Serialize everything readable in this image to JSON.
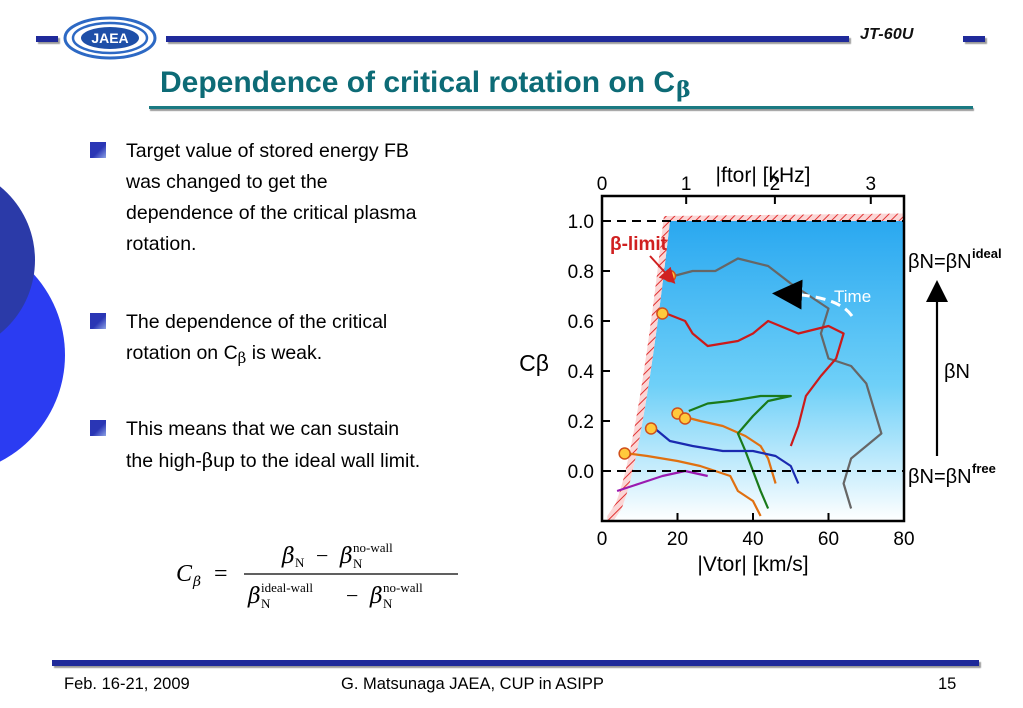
{
  "header": {
    "logo_text": "JAEA",
    "badge": "JT-60U"
  },
  "title": {
    "text": "Dependence of critical rotation on C",
    "subscript": "β"
  },
  "bullets": [
    {
      "lines": [
        "Target value of stored energy FB",
        "was changed to get the",
        "dependence of the critical plasma",
        "rotation."
      ]
    },
    {
      "lines": [
        "The dependence of the critical"
      ],
      "line2_prefix": "rotation on C",
      "line2_sub": "β",
      "line2_suffix": " is weak."
    },
    {
      "lines": [
        "This means that we can sustain"
      ],
      "line2_prefix": "the high-",
      "line2_beta": "β",
      "line2_suffix": "up to the ideal wall limit."
    }
  ],
  "chart_data": {
    "type": "line",
    "xlabel": "|Vtor| [km/s]",
    "x2label": "|ftor| [kHz]",
    "ylabel": "Cβ",
    "xlim": [
      0,
      80
    ],
    "ylim": [
      -0.2,
      1.1
    ],
    "x_ticks": [
      "0",
      "20",
      "40",
      "60",
      "80"
    ],
    "x2_ticks": [
      "0",
      "1",
      "2",
      "3"
    ],
    "y_ticks": [
      "0.0",
      "0.2",
      "0.4",
      "0.6",
      "0.8",
      "1.0"
    ],
    "hlines": [
      1.0,
      0.0
    ],
    "annotations": {
      "limit_label": "β-limit",
      "time_label": "Time",
      "ideal_label": "βN=βN",
      "ideal_sup": "ideal",
      "free_label": "βN=βN",
      "free_sup": "free",
      "arrow_label": "βN"
    },
    "critical_points": [
      {
        "x": 6,
        "y": 0.07
      },
      {
        "x": 13,
        "y": 0.17
      },
      {
        "x": 16,
        "y": 0.63
      },
      {
        "x": 18,
        "y": 0.78
      },
      {
        "x": 20,
        "y": 0.23
      },
      {
        "x": 22,
        "y": 0.21
      }
    ],
    "series": [
      {
        "color": "#666666",
        "points": [
          [
            66,
            -0.15
          ],
          [
            64,
            -0.05
          ],
          [
            66,
            0.05
          ],
          [
            70,
            0.1
          ],
          [
            74,
            0.15
          ],
          [
            72,
            0.25
          ],
          [
            70,
            0.35
          ],
          [
            66,
            0.42
          ],
          [
            60,
            0.45
          ],
          [
            58,
            0.55
          ],
          [
            60,
            0.65
          ],
          [
            55,
            0.7
          ],
          [
            50,
            0.75
          ],
          [
            44,
            0.82
          ],
          [
            36,
            0.85
          ],
          [
            30,
            0.8
          ],
          [
            24,
            0.8
          ],
          [
            19,
            0.78
          ]
        ]
      },
      {
        "color": "#cc1a1a",
        "points": [
          [
            50,
            0.1
          ],
          [
            52,
            0.18
          ],
          [
            54,
            0.3
          ],
          [
            58,
            0.38
          ],
          [
            62,
            0.45
          ],
          [
            64,
            0.55
          ],
          [
            60,
            0.58
          ],
          [
            52,
            0.55
          ],
          [
            44,
            0.6
          ],
          [
            40,
            0.55
          ],
          [
            36,
            0.52
          ],
          [
            28,
            0.5
          ],
          [
            24,
            0.55
          ],
          [
            22,
            0.6
          ],
          [
            17,
            0.63
          ]
        ]
      },
      {
        "color": "#e07010",
        "points": [
          [
            46,
            -0.05
          ],
          [
            44,
            0.05
          ],
          [
            42,
            0.1
          ],
          [
            38,
            0.14
          ],
          [
            32,
            0.18
          ],
          [
            26,
            0.2
          ],
          [
            21,
            0.22
          ]
        ]
      },
      {
        "color": "#1a7a1a",
        "points": [
          [
            44,
            -0.15
          ],
          [
            42,
            -0.08
          ],
          [
            40,
            0.0
          ],
          [
            38,
            0.08
          ],
          [
            36,
            0.15
          ],
          [
            40,
            0.22
          ],
          [
            44,
            0.28
          ],
          [
            50,
            0.3
          ],
          [
            42,
            0.3
          ],
          [
            34,
            0.28
          ],
          [
            28,
            0.27
          ],
          [
            23,
            0.24
          ]
        ]
      },
      {
        "color": "#1a2ab0",
        "points": [
          [
            52,
            -0.05
          ],
          [
            50,
            0.02
          ],
          [
            46,
            0.06
          ],
          [
            40,
            0.08
          ],
          [
            32,
            0.08
          ],
          [
            24,
            0.1
          ],
          [
            18,
            0.12
          ],
          [
            14,
            0.17
          ]
        ]
      },
      {
        "color": "#9a1ab0",
        "points": [
          [
            28,
            -0.02
          ],
          [
            22,
            0.0
          ],
          [
            16,
            -0.02
          ],
          [
            10,
            -0.05
          ],
          [
            4,
            -0.08
          ]
        ]
      },
      {
        "color": "#e07010",
        "points": [
          [
            42,
            -0.18
          ],
          [
            40,
            -0.12
          ],
          [
            36,
            -0.08
          ],
          [
            34,
            -0.02
          ],
          [
            30,
            0.0
          ],
          [
            26,
            0.02
          ],
          [
            20,
            0.04
          ],
          [
            12,
            0.06
          ],
          [
            7,
            0.07
          ]
        ]
      }
    ]
  },
  "formula": {
    "lhs": "C",
    "lhs_sub": "β",
    "eq": "=",
    "num_a": "β",
    "num_a_sub": "N",
    "minus": "−",
    "num_b": "β",
    "num_b_sub": "N",
    "num_b_sup": "no-wall",
    "den_a": "β",
    "den_a_sub": "N",
    "den_a_sup": "ideal-wall",
    "den_b": "β",
    "den_b_sub": "N",
    "den_b_sup": "no-wall"
  },
  "footer": {
    "date": "Feb. 16-21, 2009",
    "author": "G. Matsunaga JAEA, CUP in ASIPP",
    "page": "15"
  }
}
